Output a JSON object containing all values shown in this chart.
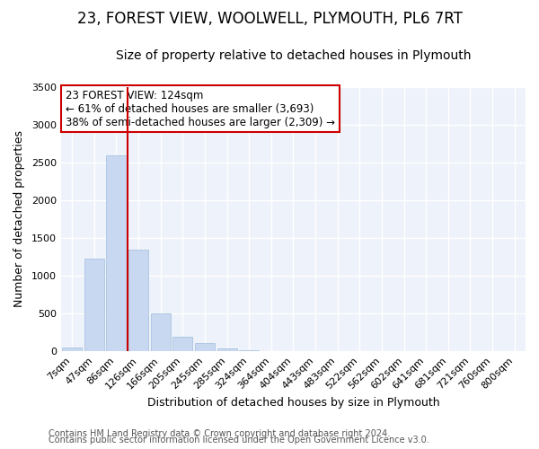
{
  "title": "23, FOREST VIEW, WOOLWELL, PLYMOUTH, PL6 7RT",
  "subtitle": "Size of property relative to detached houses in Plymouth",
  "xlabel": "Distribution of detached houses by size in Plymouth",
  "ylabel": "Number of detached properties",
  "bar_labels": [
    "7sqm",
    "47sqm",
    "86sqm",
    "126sqm",
    "166sqm",
    "205sqm",
    "245sqm",
    "285sqm",
    "324sqm",
    "364sqm",
    "404sqm",
    "443sqm",
    "483sqm",
    "522sqm",
    "562sqm",
    "602sqm",
    "641sqm",
    "681sqm",
    "721sqm",
    "760sqm",
    "800sqm"
  ],
  "bar_values": [
    50,
    1230,
    2590,
    1350,
    500,
    195,
    110,
    45,
    15,
    0,
    0,
    0,
    0,
    0,
    0,
    0,
    0,
    0,
    0,
    0,
    0
  ],
  "bar_color": "#c8d8f0",
  "bar_edge_color": "#aac4e0",
  "property_line_color": "#cc0000",
  "property_line_index": 2.5,
  "annotation_title": "23 FOREST VIEW: 124sqm",
  "annotation_line1": "← 61% of detached houses are smaller (3,693)",
  "annotation_line2": "38% of semi-detached houses are larger (2,309) →",
  "annotation_box_edge_color": "#cc0000",
  "annotation_bg": "#ffffff",
  "ylim": [
    0,
    3500
  ],
  "yticks": [
    0,
    500,
    1000,
    1500,
    2000,
    2500,
    3000,
    3500
  ],
  "footer1": "Contains HM Land Registry data © Crown copyright and database right 2024.",
  "footer2": "Contains public sector information licensed under the Open Government Licence v3.0.",
  "plot_bg_color": "#eef2fa",
  "fig_bg_color": "#ffffff",
  "grid_color": "#ffffff",
  "title_fontsize": 12,
  "subtitle_fontsize": 10,
  "axis_label_fontsize": 9,
  "tick_fontsize": 8,
  "footer_fontsize": 7
}
